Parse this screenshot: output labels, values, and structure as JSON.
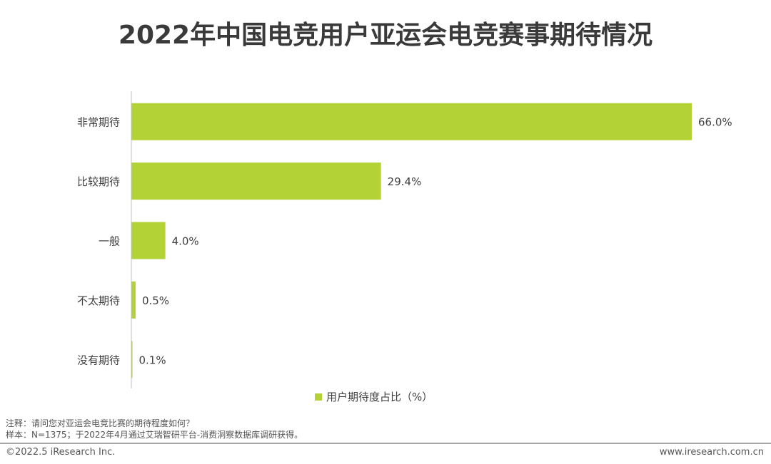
{
  "title": "2022年中国电竞用户亚运会电竞赛事期待情况",
  "chart_data": {
    "type": "bar",
    "orientation": "horizontal",
    "title": "2022年中国电竞用户亚运会电竞赛事期待情况",
    "categories": [
      "非常期待",
      "比较期待",
      "一般",
      "不太期待",
      "没有期待"
    ],
    "series": [
      {
        "name": "用户期待度占比（%）",
        "values": [
          66.0,
          29.4,
          4.0,
          0.5,
          0.1
        ],
        "color": "#b2d235"
      }
    ],
    "data_labels": [
      "66.0%",
      "29.4%",
      "4.0%",
      "0.5%",
      "0.1%"
    ],
    "xlim": [
      0,
      66
    ],
    "grid": false,
    "legend": "bottom-center"
  },
  "notes": {
    "note": "注释：请问您对亚运会电竞比赛的期待程度如何？",
    "sample": "样本：N=1375；于2022年4月通过艾瑞智研平台-消费洞察数据库调研获得。"
  },
  "footer": {
    "copyright": "©2022.5 iResearch Inc.",
    "website": "www.iresearch.com.cn"
  }
}
